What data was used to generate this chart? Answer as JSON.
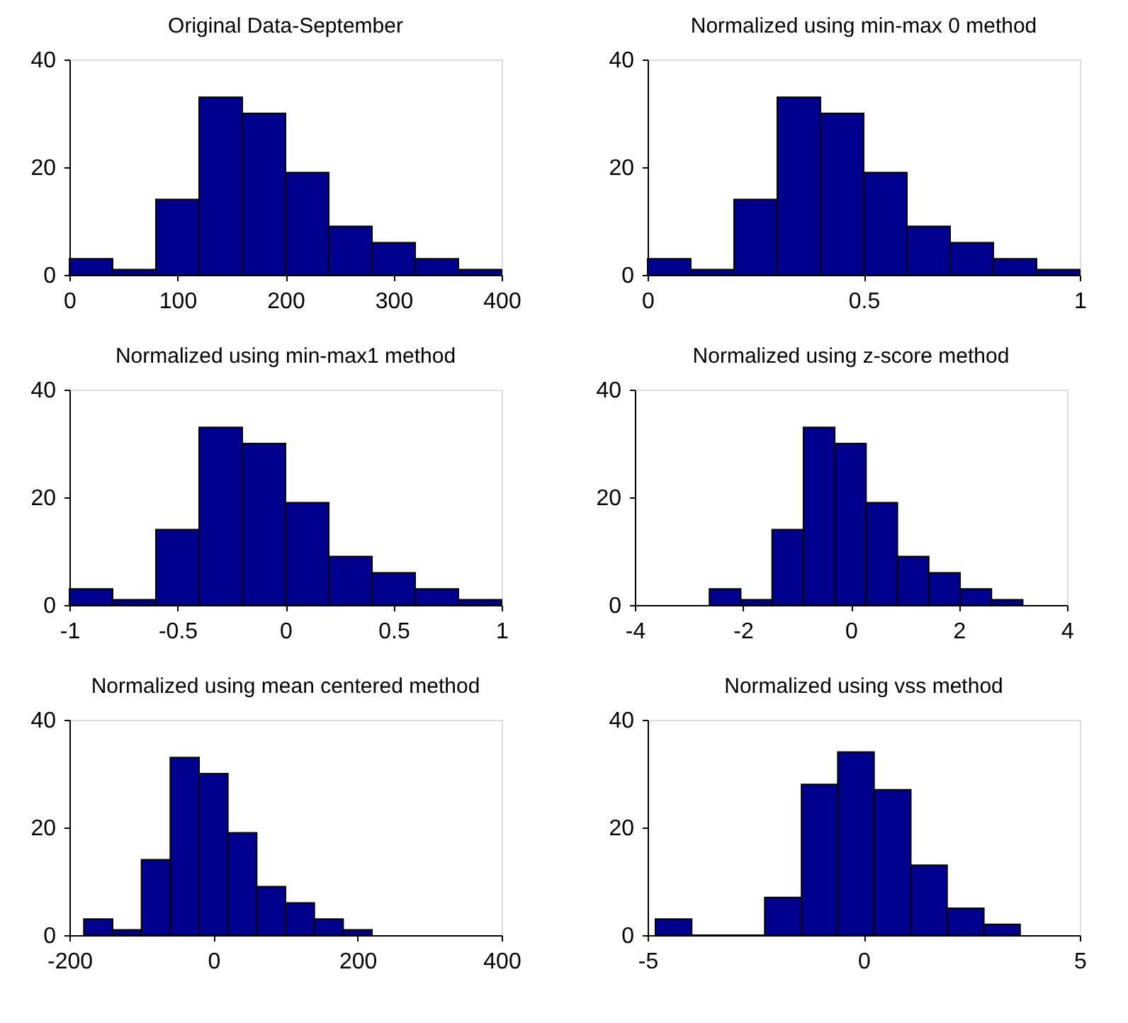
{
  "chart_data": [
    {
      "type": "histogram",
      "title": "Original Data-September",
      "bins": [
        0,
        40,
        80,
        120,
        160,
        200,
        240,
        280,
        320,
        360,
        400
      ],
      "values": [
        3,
        1,
        14,
        33,
        30,
        19,
        9,
        6,
        3,
        1
      ],
      "color": "#00008f",
      "xlim": [
        0,
        400
      ],
      "xticks": [
        0,
        100,
        200,
        300,
        400
      ],
      "ylim": [
        0,
        40
      ],
      "yticks": [
        0,
        20,
        40
      ]
    },
    {
      "type": "histogram",
      "title": "Normalized using min-max 0 method",
      "bins": [
        0,
        0.1,
        0.2,
        0.3,
        0.4,
        0.5,
        0.6,
        0.7,
        0.8,
        0.9,
        1
      ],
      "values": [
        3,
        1,
        14,
        33,
        30,
        19,
        9,
        6,
        3,
        1
      ],
      "color": "#00008f",
      "xlim": [
        0,
        1
      ],
      "xticks": [
        0,
        0.5,
        1
      ],
      "ylim": [
        0,
        40
      ],
      "yticks": [
        0,
        20,
        40
      ]
    },
    {
      "type": "histogram",
      "title": "Normalized using min-max1 method",
      "bins": [
        -1,
        -0.8,
        -0.6,
        -0.4,
        -0.2,
        0,
        0.2,
        0.4,
        0.6,
        0.8,
        1
      ],
      "values": [
        3,
        1,
        14,
        33,
        30,
        19,
        9,
        6,
        3,
        1
      ],
      "color": "#00008f",
      "xlim": [
        -1,
        1
      ],
      "xticks": [
        -1,
        -0.5,
        0,
        0.5,
        1
      ],
      "ylim": [
        0,
        40
      ],
      "yticks": [
        0,
        20,
        40
      ]
    },
    {
      "type": "histogram",
      "title": "Normalized using z-score method",
      "bins": [
        -2.62,
        -2.04,
        -1.46,
        -0.88,
        -0.3,
        0.28,
        0.86,
        1.44,
        2.02,
        2.6,
        3.18
      ],
      "values": [
        3,
        1,
        14,
        33,
        30,
        19,
        9,
        6,
        3,
        1
      ],
      "color": "#00008f",
      "xlim": [
        -4,
        4
      ],
      "xticks": [
        -4,
        -2,
        0,
        2,
        4
      ],
      "ylim": [
        0,
        40
      ],
      "yticks": [
        0,
        20,
        40
      ]
    },
    {
      "type": "histogram",
      "title": "Normalized using mean centered method",
      "bins": [
        -180,
        -140,
        -100,
        -60,
        -20,
        20,
        60,
        100,
        140,
        180,
        220
      ],
      "values": [
        3,
        1,
        14,
        33,
        30,
        19,
        9,
        6,
        3,
        1
      ],
      "color": "#00008f",
      "xlim": [
        -200,
        400
      ],
      "xticks": [
        -200,
        0,
        200,
        400
      ],
      "ylim": [
        0,
        40
      ],
      "yticks": [
        0,
        20,
        40
      ]
    },
    {
      "type": "histogram",
      "title": "Normalized using vss method",
      "bins": [
        -4.82,
        -3.98,
        -2.29,
        -1.44,
        -0.6,
        0.24,
        1.09,
        1.93,
        2.78,
        3.62
      ],
      "values": [
        3,
        0,
        7,
        28,
        34,
        27,
        13,
        5,
        2
      ],
      "color": "#00008f",
      "xlim": [
        -5,
        5
      ],
      "xticks": [
        -5,
        0,
        5
      ],
      "ylim": [
        0,
        40
      ],
      "yticks": [
        0,
        20,
        40
      ]
    }
  ]
}
